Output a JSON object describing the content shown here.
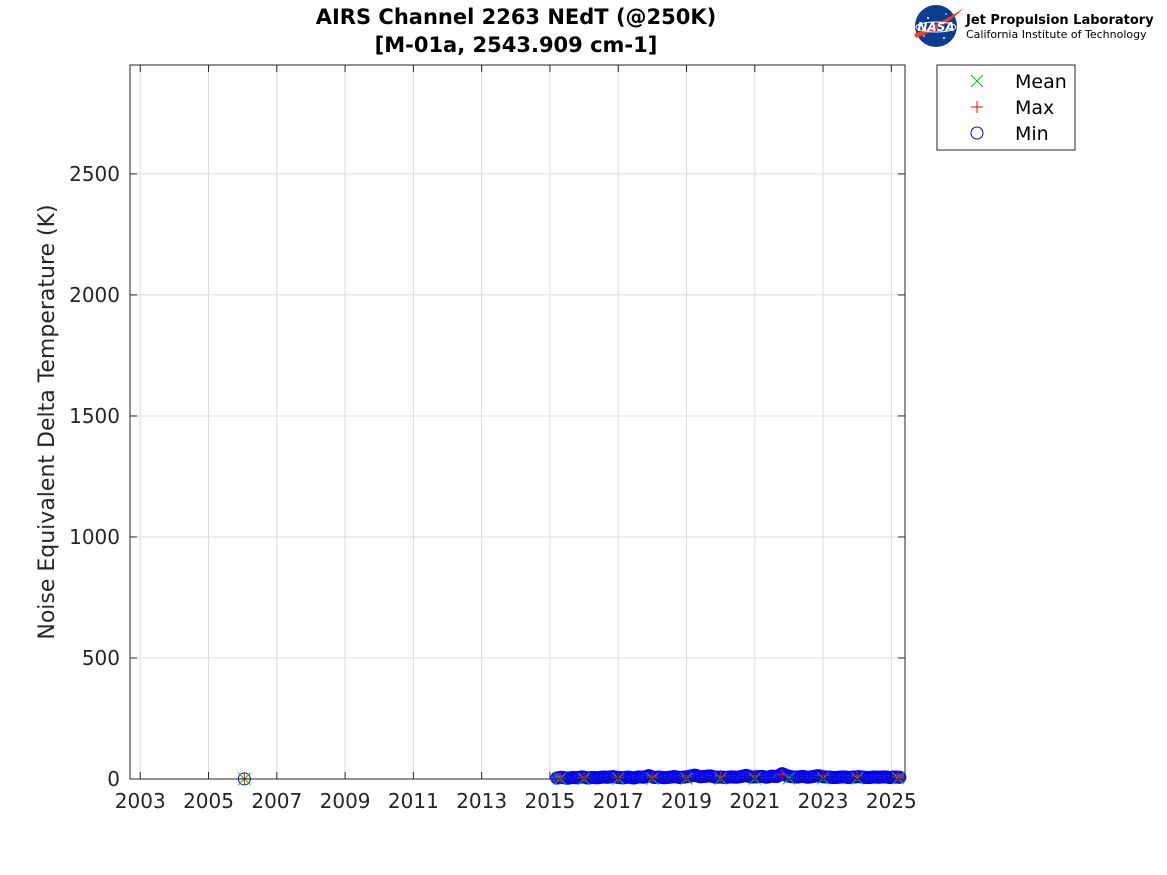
{
  "chart_data": {
    "type": "scatter",
    "title": "AIRS Channel 2263 NEdT (@250K)",
    "subtitle": "[M-01a, 2543.909 cm-1]",
    "xlabel": "",
    "ylabel": "Noise Equivalent Delta Temperature (K)",
    "xlim": [
      2002.7,
      2025.4
    ],
    "ylim": [
      0,
      2950
    ],
    "xticks": [
      "2003",
      "2005",
      "2007",
      "2009",
      "2011",
      "2013",
      "2015",
      "2017",
      "2019",
      "2021",
      "2023",
      "2025"
    ],
    "yticks": [
      "0",
      "500",
      "1000",
      "1500",
      "2000",
      "2500"
    ],
    "grid": true,
    "legend_position": "outside-top-right",
    "series": [
      {
        "name": "Mean",
        "marker": "x",
        "color": "#00cc00",
        "points": [
          [
            2006.05,
            0.6
          ],
          [
            2015.3,
            1.0
          ],
          [
            2016.0,
            1.2
          ],
          [
            2017.0,
            1.4
          ],
          [
            2018.0,
            1.5
          ],
          [
            2019.0,
            1.7
          ],
          [
            2020.0,
            1.9
          ],
          [
            2021.0,
            2.1
          ],
          [
            2022.0,
            2.3
          ],
          [
            2023.0,
            2.5
          ],
          [
            2024.0,
            2.7
          ],
          [
            2025.2,
            3.0
          ]
        ]
      },
      {
        "name": "Max",
        "marker": "+",
        "color": "#ff0000",
        "points": [
          [
            2006.05,
            0.8
          ],
          [
            2015.3,
            3.0
          ],
          [
            2016.0,
            5.0
          ],
          [
            2017.0,
            6.0
          ],
          [
            2018.0,
            8.0
          ],
          [
            2019.0,
            10.0
          ],
          [
            2020.0,
            12.0
          ],
          [
            2021.0,
            14.0
          ],
          [
            2021.8,
            18.0
          ],
          [
            2023.0,
            15.0
          ],
          [
            2024.0,
            12.0
          ],
          [
            2025.2,
            10.0
          ]
        ]
      },
      {
        "name": "Min",
        "marker": "o",
        "color": "#0000ff",
        "points": [
          [
            2006.05,
            0.3
          ],
          [
            2015.2,
            4.0
          ],
          [
            2015.35,
            7.0
          ],
          [
            2015.5,
            3.0
          ],
          [
            2015.65,
            6.0
          ],
          [
            2015.8,
            5.0
          ],
          [
            2015.95,
            9.0
          ],
          [
            2016.1,
            4.0
          ],
          [
            2016.25,
            6.0
          ],
          [
            2016.4,
            5.0
          ],
          [
            2016.55,
            8.0
          ],
          [
            2016.7,
            7.0
          ],
          [
            2016.85,
            10.0
          ],
          [
            2017.0,
            6.0
          ],
          [
            2017.15,
            5.0
          ],
          [
            2017.3,
            8.0
          ],
          [
            2017.45,
            4.0
          ],
          [
            2017.6,
            9.0
          ],
          [
            2017.75,
            7.0
          ],
          [
            2017.9,
            14.0
          ],
          [
            2018.05,
            6.0
          ],
          [
            2018.2,
            8.0
          ],
          [
            2018.35,
            5.0
          ],
          [
            2018.5,
            7.0
          ],
          [
            2018.65,
            10.0
          ],
          [
            2018.8,
            6.0
          ],
          [
            2018.95,
            8.0
          ],
          [
            2019.1,
            12.0
          ],
          [
            2019.25,
            16.0
          ],
          [
            2019.4,
            9.0
          ],
          [
            2019.55,
            11.0
          ],
          [
            2019.7,
            13.0
          ],
          [
            2019.85,
            7.0
          ],
          [
            2020.0,
            8.0
          ],
          [
            2020.15,
            6.0
          ],
          [
            2020.3,
            9.0
          ],
          [
            2020.45,
            7.0
          ],
          [
            2020.6,
            10.0
          ],
          [
            2020.75,
            15.0
          ],
          [
            2020.9,
            8.0
          ],
          [
            2021.05,
            9.0
          ],
          [
            2021.2,
            11.0
          ],
          [
            2021.35,
            7.0
          ],
          [
            2021.5,
            12.0
          ],
          [
            2021.65,
            10.0
          ],
          [
            2021.8,
            22.0
          ],
          [
            2021.95,
            13.0
          ],
          [
            2022.1,
            9.0
          ],
          [
            2022.25,
            8.0
          ],
          [
            2022.4,
            11.0
          ],
          [
            2022.55,
            7.0
          ],
          [
            2022.7,
            10.0
          ],
          [
            2022.85,
            14.0
          ],
          [
            2023.0,
            9.0
          ],
          [
            2023.15,
            8.0
          ],
          [
            2023.3,
            6.0
          ],
          [
            2023.45,
            7.0
          ],
          [
            2023.6,
            9.0
          ],
          [
            2023.75,
            6.0
          ],
          [
            2023.9,
            8.0
          ],
          [
            2024.05,
            10.0
          ],
          [
            2024.2,
            7.0
          ],
          [
            2024.35,
            6.0
          ],
          [
            2024.5,
            8.0
          ],
          [
            2024.65,
            7.0
          ],
          [
            2024.8,
            9.0
          ],
          [
            2024.95,
            6.0
          ],
          [
            2025.1,
            8.0
          ],
          [
            2025.25,
            7.0
          ]
        ]
      }
    ]
  },
  "logo": {
    "org_name": "Jet Propulsion Laboratory",
    "org_sub": "California Institute of Technology",
    "badge_text": "NASA"
  },
  "colors": {
    "mean": "#00cc00",
    "max": "#ff0000",
    "min": "#0000ff",
    "grid": "#dcdcdc",
    "axis": "#262626",
    "nasa_blue": "#0b3d91",
    "nasa_red": "#fc3d21"
  }
}
